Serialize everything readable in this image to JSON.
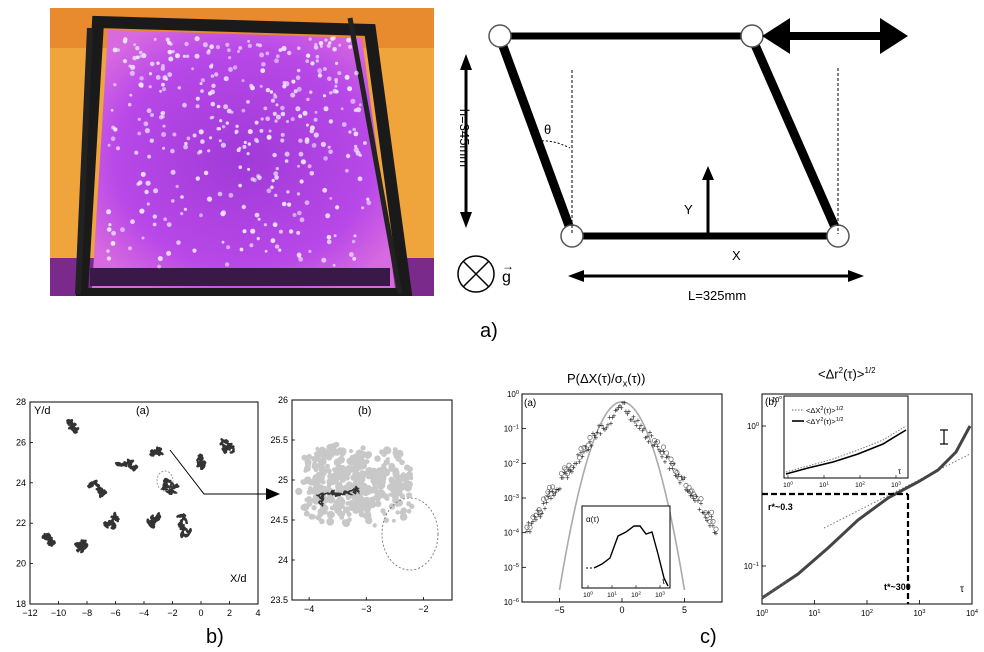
{
  "panel_a": {
    "photo": {
      "tray_frame_color": "#1a1a1a",
      "background_color": "#f0a03a",
      "glow_color": "#c040e0",
      "particle_color": "#e8e0ff"
    },
    "schematic": {
      "h_label": "h=345mm",
      "theta_label": "θ",
      "y_label": "Y",
      "x_label": "X",
      "l_label": "L=325mm",
      "g_label": "g"
    },
    "caption": "a)"
  },
  "panel_b": {
    "caption": "b)",
    "left": {
      "sublabel": "(a)",
      "ylabel": "Y/d",
      "xlabel": "X/d",
      "xticks": [
        "−12",
        "−10",
        "−8",
        "−6",
        "−4",
        "−2",
        "0",
        "2",
        "4"
      ],
      "yticks": [
        "18",
        "20",
        "22",
        "24",
        "26",
        "28"
      ],
      "xlim": [
        -12,
        4
      ],
      "ylim": [
        18,
        28
      ]
    },
    "right": {
      "sublabel": "(b)",
      "xticks": [
        "−4",
        "−3",
        "−2"
      ],
      "yticks": [
        "23.5",
        "24",
        "24.5",
        "25",
        "25.5",
        "26"
      ],
      "xlim": [
        -4.3,
        -1.5
      ],
      "ylim": [
        23.5,
        26
      ]
    }
  },
  "panel_c": {
    "caption": "c)",
    "left": {
      "title_main": "P(ΔX(τ)/σ",
      "title_sub": "x",
      "title_tail": "(τ))",
      "sublabel": "(a)",
      "xticks": [
        "−5",
        "0",
        "5"
      ],
      "yticks": [
        {
          "base": "10",
          "exp": "0"
        },
        {
          "base": "10",
          "exp": "−1"
        },
        {
          "base": "10",
          "exp": "−2"
        },
        {
          "base": "10",
          "exp": "−3"
        },
        {
          "base": "10",
          "exp": "−4"
        },
        {
          "base": "10",
          "exp": "−5"
        },
        {
          "base": "10",
          "exp": "−6"
        }
      ],
      "inset": {
        "label": "α(τ)",
        "tau": "τ",
        "xticks": [
          {
            "base": "10",
            "exp": "0"
          },
          {
            "base": "10",
            "exp": "1"
          },
          {
            "base": "10",
            "exp": "2"
          },
          {
            "base": "10",
            "exp": "3"
          }
        ]
      }
    },
    "right": {
      "title_main": "<Δr",
      "title_sup": "2",
      "title_tail": "(τ)>",
      "title_exp": "1/2",
      "sublabel": "(b)",
      "tau": "τ",
      "r_star": "r*~0.3",
      "t_star": "t*~300",
      "xticks": [
        {
          "base": "10",
          "exp": "0"
        },
        {
          "base": "10",
          "exp": "1"
        },
        {
          "base": "10",
          "exp": "2"
        },
        {
          "base": "10",
          "exp": "3"
        },
        {
          "base": "10",
          "exp": "4"
        }
      ],
      "yticks": [
        {
          "base": "10",
          "exp": "0"
        },
        {
          "base": "10",
          "exp": "−1"
        }
      ],
      "inset": {
        "ytick": {
          "base": "10",
          "exp": "0"
        },
        "legend_x_main": "<ΔX",
        "legend_x_sup": "2",
        "legend_x_tail": "(τ)>",
        "legend_x_exp": "1/2",
        "legend_y_main": "<ΔY",
        "legend_y_sup": "2",
        "legend_y_tail": "(τ)>",
        "legend_y_exp": "1/2",
        "tau": "τ",
        "xticks": [
          {
            "base": "10",
            "exp": "0"
          },
          {
            "base": "10",
            "exp": "1"
          },
          {
            "base": "10",
            "exp": "2"
          },
          {
            "base": "10",
            "exp": "3"
          }
        ]
      }
    }
  }
}
